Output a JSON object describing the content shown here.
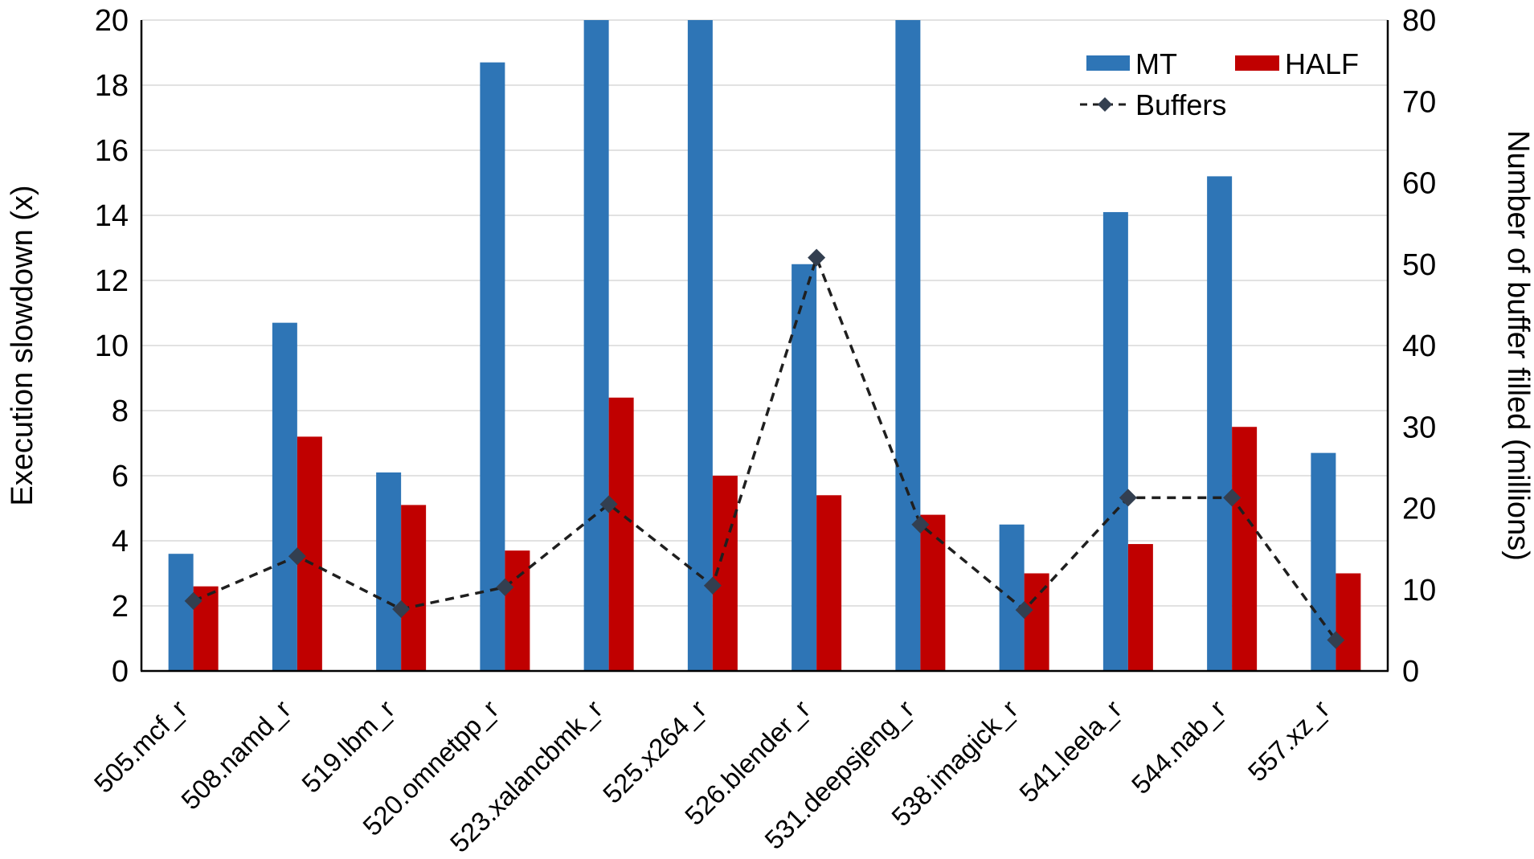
{
  "chart_data": {
    "type": "bar",
    "subtype": "combo-bar-line-dual-axis",
    "categories": [
      "505.mcf_r",
      "508.namd_r",
      "519.lbm_r",
      "520.omnetpp_r",
      "523.xalancbmk_r",
      "525.x264_r",
      "526.blender_r",
      "531.deepsjeng_r",
      "538.imagick_r",
      "541.leela_r",
      "544.nab_r",
      "557.xz_r"
    ],
    "series": [
      {
        "name": "MT",
        "type": "bar",
        "axis": "left",
        "values": [
          3.6,
          10.7,
          6.1,
          18.7,
          20,
          20,
          12.5,
          20,
          4.5,
          14.1,
          15.2,
          6.7
        ]
      },
      {
        "name": "HALF",
        "type": "bar",
        "axis": "left",
        "values": [
          2.6,
          7.2,
          5.1,
          3.7,
          8.4,
          6.0,
          5.4,
          4.8,
          3.0,
          3.9,
          7.5,
          3.0
        ]
      },
      {
        "name": "Buffers",
        "type": "line",
        "style": "dashed",
        "marker": "diamond",
        "axis": "right",
        "values": [
          8.6,
          14.1,
          7.6,
          10.3,
          20.5,
          10.5,
          50.8,
          18.0,
          7.5,
          21.3,
          21.3,
          3.8
        ]
      }
    ],
    "left_axis": {
      "title": "Execution slowdown (x)",
      "min": 0,
      "max": 20,
      "step": 2
    },
    "right_axis": {
      "title": "Number of buffer filled (millions)",
      "min": 0,
      "max": 80,
      "step": 10
    },
    "legend": {
      "position": "top-right",
      "rows": [
        [
          "MT",
          "HALF"
        ],
        [
          "Buffers"
        ]
      ]
    },
    "grid": true,
    "clipped_at_left_max": [
      "523.xalancbmk_r",
      "525.x264_r",
      "531.deepsjeng_r"
    ]
  },
  "colors": {
    "mt_bar": "#2E75B6",
    "half_bar": "#C00000",
    "buffers_line": "#1F1F1F",
    "buffers_marker": "#333F50",
    "gridline": "#D9D9D9",
    "axis_line": "#000000",
    "text": "#000000",
    "background": "#FFFFFF"
  }
}
